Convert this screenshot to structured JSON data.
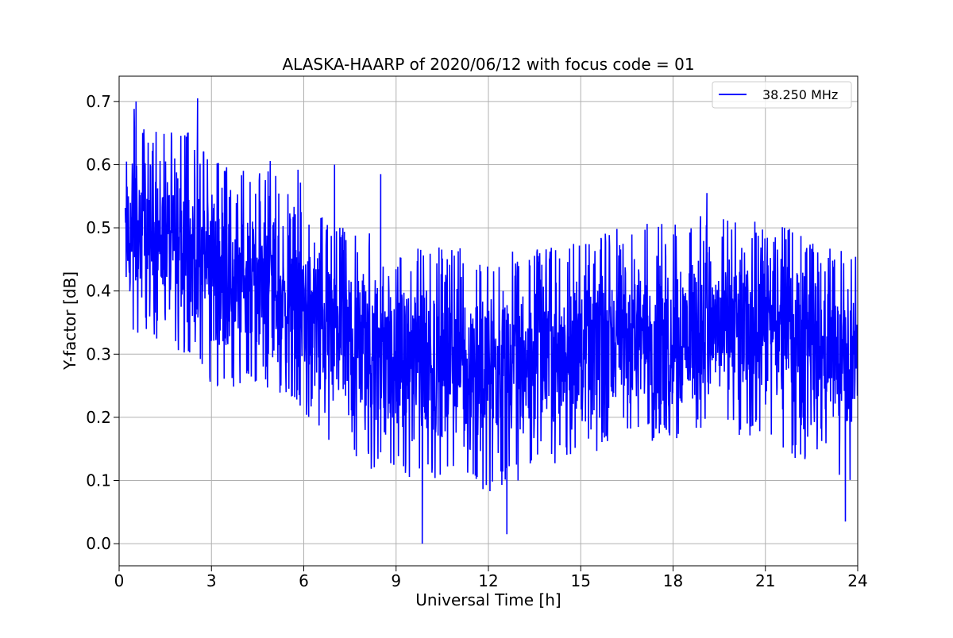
{
  "chart_data": {
    "type": "line",
    "title": "ALASKA-HAARP of 2020/06/12 with focus code = 01",
    "xlabel": "Universal Time [h]",
    "ylabel": "Y-factor [dB]",
    "xlim": [
      0,
      24
    ],
    "ylim": [
      -0.035,
      0.74
    ],
    "xticks": [
      0,
      3,
      6,
      9,
      12,
      15,
      18,
      21,
      24
    ],
    "xtick_labels": [
      "0",
      "3",
      "6",
      "9",
      "12",
      "15",
      "18",
      "21",
      "24"
    ],
    "yticks": [
      0.0,
      0.1,
      0.2,
      0.3,
      0.4,
      0.5,
      0.6,
      0.7
    ],
    "ytick_labels": [
      "0.0",
      "0.1",
      "0.2",
      "0.3",
      "0.4",
      "0.5",
      "0.6",
      "0.7"
    ],
    "grid": true,
    "legend_position": "top-right",
    "series": [
      {
        "name": "38.250 MHz",
        "color": "#0000ff",
        "x_range": [
          0.2,
          24
        ],
        "envelope": {
          "x": [
            0.2,
            0.5,
            1,
            2,
            3,
            4,
            5,
            6,
            7,
            8,
            9,
            10,
            11,
            12,
            13,
            14,
            15,
            16,
            17,
            18,
            19,
            20,
            21,
            22,
            23,
            24
          ],
          "max": [
            0.65,
            0.7,
            0.66,
            0.66,
            0.63,
            0.59,
            0.61,
            0.59,
            0.51,
            0.5,
            0.46,
            0.47,
            0.47,
            0.44,
            0.47,
            0.47,
            0.48,
            0.5,
            0.51,
            0.51,
            0.52,
            0.51,
            0.51,
            0.5,
            0.47,
            0.46
          ],
          "mean": [
            0.48,
            0.5,
            0.49,
            0.47,
            0.44,
            0.42,
            0.41,
            0.38,
            0.33,
            0.31,
            0.29,
            0.29,
            0.29,
            0.28,
            0.29,
            0.3,
            0.31,
            0.32,
            0.33,
            0.33,
            0.34,
            0.34,
            0.34,
            0.33,
            0.3,
            0.28
          ],
          "min": [
            0.34,
            0.33,
            0.33,
            0.3,
            0.25,
            0.24,
            0.23,
            0.21,
            0.14,
            0.12,
            0.11,
            0.1,
            0.1,
            0.08,
            0.1,
            0.12,
            0.13,
            0.15,
            0.16,
            0.16,
            0.17,
            0.17,
            0.17,
            0.13,
            0.1,
            0.08
          ]
        },
        "notable_points": [
          {
            "x": 0.55,
            "y": 0.7
          },
          {
            "x": 2.55,
            "y": 0.705
          },
          {
            "x": 7.0,
            "y": 0.6
          },
          {
            "x": 8.5,
            "y": 0.585
          },
          {
            "x": 9.85,
            "y": 0.0
          },
          {
            "x": 12.6,
            "y": 0.015
          },
          {
            "x": 19.1,
            "y": 0.555
          },
          {
            "x": 23.6,
            "y": 0.035
          }
        ]
      }
    ]
  }
}
